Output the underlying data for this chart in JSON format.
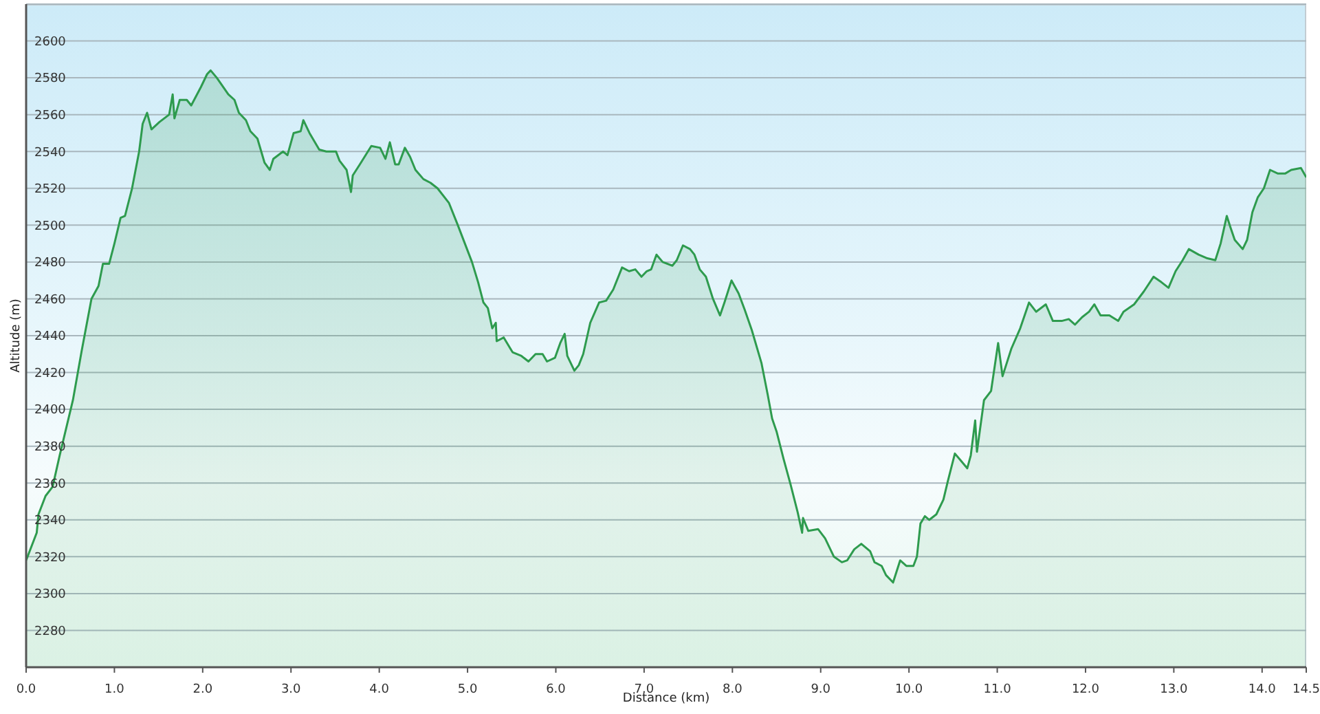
{
  "chart_data": {
    "type": "area",
    "xlabel": "Distance (km)",
    "ylabel": "Altitude (m)",
    "xlim": [
      0,
      14.5
    ],
    "xticks": [
      {
        "value": 0,
        "label": "0.0"
      },
      {
        "value": 1,
        "label": "1.0"
      },
      {
        "value": 2,
        "label": "2.0"
      },
      {
        "value": 3,
        "label": "3.0"
      },
      {
        "value": 4,
        "label": "4.0"
      },
      {
        "value": 5,
        "label": "5.0"
      },
      {
        "value": 6,
        "label": "6.0"
      },
      {
        "value": 7,
        "label": "7.0"
      },
      {
        "value": 8,
        "label": "8.0"
      },
      {
        "value": 9,
        "label": "9.0"
      },
      {
        "value": 10,
        "label": "10.0"
      },
      {
        "value": 11,
        "label": "11.0"
      },
      {
        "value": 12,
        "label": "12.0"
      },
      {
        "value": 13,
        "label": "13.0"
      },
      {
        "value": 14,
        "label": "14.0"
      },
      14.5
    ],
    "ylim": [
      2260,
      2620
    ],
    "yticks": [
      2280,
      2300,
      2320,
      2340,
      2360,
      2380,
      2400,
      2420,
      2440,
      2460,
      2480,
      2500,
      2520,
      2540,
      2560,
      2580,
      2600
    ],
    "grid": "y",
    "x": [
      0,
      0.12,
      0.14,
      0.22,
      0.3,
      0.38,
      0.53,
      0.63,
      0.74,
      0.82,
      0.87,
      0.94,
      1.0,
      1.07,
      1.12,
      1.2,
      1.28,
      1.32,
      1.37,
      1.42,
      1.51,
      1.62,
      1.66,
      1.68,
      1.74,
      1.82,
      1.87,
      1.98,
      2.05,
      2.09,
      2.16,
      2.29,
      2.36,
      2.41,
      2.49,
      2.54,
      2.62,
      2.7,
      2.76,
      2.8,
      2.91,
      2.96,
      3.03,
      3.11,
      3.14,
      3.21,
      3.32,
      3.4,
      3.51,
      3.55,
      3.63,
      3.68,
      3.7,
      3.78,
      3.91,
      4.01,
      4.07,
      4.12,
      4.18,
      4.22,
      4.29,
      4.35,
      4.41,
      4.5,
      4.58,
      4.66,
      4.79,
      4.89,
      4.97,
      5.05,
      5.12,
      5.18,
      5.23,
      5.28,
      5.32,
      5.33,
      5.41,
      5.51,
      5.61,
      5.69,
      5.77,
      5.85,
      5.9,
      5.99,
      6.05,
      6.1,
      6.13,
      6.21,
      6.26,
      6.31,
      6.39,
      6.49,
      6.57,
      6.65,
      6.75,
      6.83,
      6.9,
      6.97,
      7.03,
      7.08,
      7.14,
      7.21,
      7.32,
      7.37,
      7.44,
      7.52,
      7.57,
      7.63,
      7.7,
      7.78,
      7.86,
      7.91,
      7.99,
      8.07,
      8.14,
      8.22,
      8.33,
      8.4,
      8.45,
      8.5,
      8.58,
      8.66,
      8.74,
      8.79,
      8.8,
      8.86,
      8.97,
      9.05,
      9.15,
      9.24,
      9.3,
      9.38,
      9.46,
      9.56,
      9.61,
      9.69,
      9.74,
      9.82,
      9.9,
      9.97,
      10.05,
      10.09,
      10.13,
      10.18,
      10.23,
      10.31,
      10.39,
      10.44,
      10.52,
      10.59,
      10.66,
      10.7,
      10.75,
      10.77,
      10.85,
      10.93,
      11.01,
      11.06,
      11.16,
      11.26,
      11.36,
      11.44,
      11.55,
      11.63,
      11.73,
      11.81,
      11.88,
      11.96,
      12.04,
      12.1,
      12.17,
      12.27,
      12.37,
      12.43,
      12.55,
      12.66,
      12.77,
      12.86,
      12.94,
      13.02,
      13.1,
      13.17,
      13.28,
      13.38,
      13.47,
      13.53,
      13.6,
      13.64,
      13.69,
      13.78,
      13.83,
      13.89,
      13.95,
      14.02,
      14.09,
      14.18,
      14.26,
      14.33,
      14.44,
      14.5
    ],
    "series": [
      {
        "color": "#2e9b4e",
        "values": [
          2318,
          2333,
          2343,
          2353,
          2358,
          2375,
          2405,
          2432,
          2460,
          2467,
          2479,
          2479,
          2490,
          2504,
          2505,
          2520,
          2540,
          2555,
          2561,
          2552,
          2556,
          2560,
          2571,
          2558,
          2568,
          2568,
          2565,
          2575,
          2582,
          2584,
          2580,
          2571,
          2568,
          2561,
          2557,
          2551,
          2547,
          2534,
          2530,
          2536,
          2540,
          2538,
          2550,
          2551,
          2557,
          2550,
          2541,
          2540,
          2540,
          2535,
          2530,
          2518,
          2527,
          2533,
          2543,
          2542,
          2536,
          2545,
          2533,
          2533,
          2542,
          2537,
          2530,
          2525,
          2523,
          2520,
          2512,
          2500,
          2490,
          2480,
          2469,
          2458,
          2455,
          2444,
          2447,
          2437,
          2439,
          2431,
          2429,
          2426,
          2430,
          2430,
          2426,
          2428,
          2436,
          2441,
          2429,
          2421,
          2424,
          2430,
          2447,
          2458,
          2459,
          2465,
          2477,
          2475,
          2476,
          2472,
          2475,
          2476,
          2484,
          2480,
          2478,
          2481,
          2489,
          2487,
          2484,
          2476,
          2472,
          2460,
          2451,
          2458,
          2470,
          2463,
          2454,
          2443,
          2425,
          2408,
          2395,
          2388,
          2373,
          2359,
          2344,
          2333,
          2341,
          2334,
          2335,
          2330,
          2320,
          2317,
          2318,
          2324,
          2327,
          2323,
          2317,
          2315,
          2310,
          2306,
          2318,
          2315,
          2315,
          2320,
          2338,
          2342,
          2340,
          2343,
          2351,
          2361,
          2376,
          2372,
          2368,
          2375,
          2394,
          2377,
          2405,
          2410,
          2436,
          2418,
          2433,
          2444,
          2458,
          2453,
          2457,
          2448,
          2448,
          2449,
          2446,
          2450,
          2453,
          2457,
          2451,
          2451,
          2448,
          2453,
          2457,
          2464,
          2472,
          2469,
          2466,
          2475,
          2481,
          2487,
          2484,
          2482,
          2481,
          2490,
          2505,
          2499,
          2492,
          2487,
          2492,
          2507,
          2515,
          2520,
          2530,
          2528,
          2528,
          2530,
          2531,
          2526
        ]
      }
    ]
  }
}
